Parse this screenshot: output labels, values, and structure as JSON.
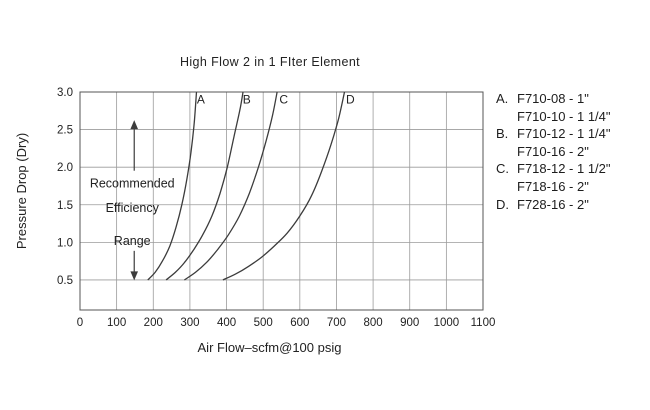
{
  "chart_data": {
    "type": "line",
    "title": "High Flow 2 in 1 FIter Element",
    "xlabel": "Air Flow–scfm@100 psig",
    "ylabel": "Pressure Drop (Dry)",
    "xlim": [
      0,
      1100
    ],
    "ylim": [
      0.1,
      3.0
    ],
    "x_ticks": [
      0,
      100,
      200,
      300,
      400,
      500,
      600,
      700,
      800,
      900,
      1000,
      1100
    ],
    "y_ticks": [
      0.5,
      1.0,
      1.5,
      2.0,
      2.5,
      3.0
    ],
    "grid": true,
    "series": [
      {
        "name": "A",
        "points": [
          [
            185,
            0.5
          ],
          [
            205,
            0.6
          ],
          [
            225,
            0.75
          ],
          [
            245,
            0.95
          ],
          [
            262,
            1.2
          ],
          [
            278,
            1.5
          ],
          [
            292,
            1.85
          ],
          [
            303,
            2.2
          ],
          [
            312,
            2.6
          ],
          [
            318,
            3.0
          ]
        ]
      },
      {
        "name": "B",
        "points": [
          [
            235,
            0.5
          ],
          [
            260,
            0.6
          ],
          [
            285,
            0.73
          ],
          [
            310,
            0.9
          ],
          [
            335,
            1.1
          ],
          [
            360,
            1.35
          ],
          [
            382,
            1.65
          ],
          [
            402,
            2.0
          ],
          [
            420,
            2.4
          ],
          [
            436,
            2.75
          ],
          [
            445,
            3.0
          ]
        ]
      },
      {
        "name": "C",
        "points": [
          [
            285,
            0.5
          ],
          [
            315,
            0.6
          ],
          [
            345,
            0.73
          ],
          [
            375,
            0.9
          ],
          [
            405,
            1.1
          ],
          [
            435,
            1.35
          ],
          [
            462,
            1.65
          ],
          [
            487,
            2.0
          ],
          [
            508,
            2.35
          ],
          [
            526,
            2.7
          ],
          [
            538,
            3.0
          ]
        ]
      },
      {
        "name": "D",
        "points": [
          [
            390,
            0.5
          ],
          [
            425,
            0.58
          ],
          [
            460,
            0.68
          ],
          [
            495,
            0.8
          ],
          [
            530,
            0.95
          ],
          [
            565,
            1.12
          ],
          [
            600,
            1.35
          ],
          [
            632,
            1.62
          ],
          [
            660,
            1.95
          ],
          [
            685,
            2.3
          ],
          [
            706,
            2.65
          ],
          [
            722,
            3.0
          ]
        ]
      }
    ],
    "series_labels": [
      {
        "text": "A",
        "x": 330,
        "y": 2.9
      },
      {
        "text": "B",
        "x": 455,
        "y": 2.9
      },
      {
        "text": "C",
        "x": 556,
        "y": 2.9
      },
      {
        "text": "D",
        "x": 738,
        "y": 2.9
      }
    ],
    "annotation": {
      "lines": [
        "Recommended",
        "Efficiency",
        "Range"
      ],
      "x": 148,
      "arrow_top": 2.52,
      "arrow_bottom": 0.6,
      "text_y": [
        1.78,
        1.46,
        1.02
      ]
    }
  },
  "legend": {
    "items": [
      {
        "letter": "A.",
        "text": "F710-08 - 1\""
      },
      {
        "letter": "",
        "text": "F710-10 - 1 1/4\""
      },
      {
        "letter": "B.",
        "text": "F710-12 - 1 1/4\""
      },
      {
        "letter": "",
        "text": "F710-16 - 2\""
      },
      {
        "letter": "C.",
        "text": "F718-12 - 1 1/2\""
      },
      {
        "letter": "",
        "text": "F718-16 - 2\""
      },
      {
        "letter": "D.",
        "text": "F728-16 - 2\""
      }
    ]
  }
}
